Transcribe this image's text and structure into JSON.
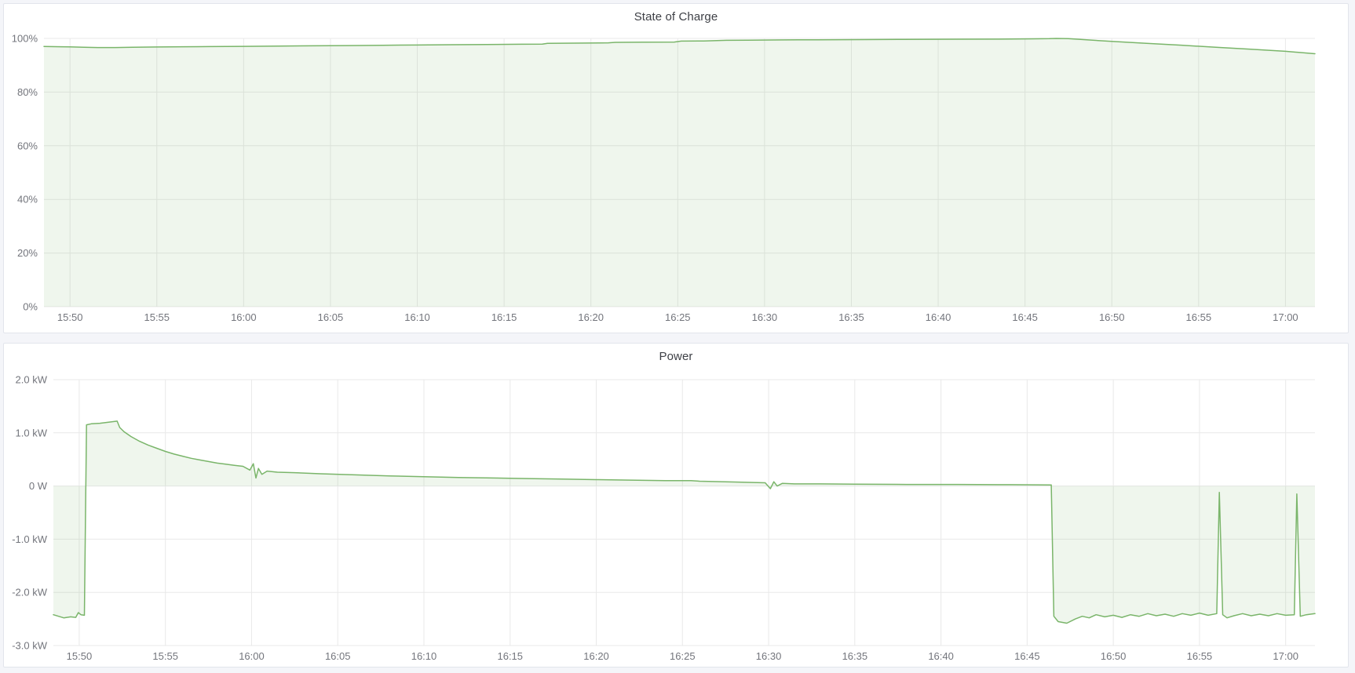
{
  "panels": [
    {
      "title": "State of Charge"
    },
    {
      "title": "Power"
    }
  ],
  "colors": {
    "series_green": "#7ab56a",
    "series_green_fill": "rgba(122,181,106,0.12)",
    "grid": "#e9e9e9",
    "tick_text": "#73757c",
    "title_text": "#3e4046",
    "panel_bg": "#ffffff",
    "page_bg": "#f4f5f9",
    "panel_border": "#e2e5ec"
  },
  "chart_data": [
    {
      "type": "area",
      "title": "State of Charge",
      "xlabel": "",
      "ylabel": "",
      "x_unit": "minutes after 15:00",
      "xlim": [
        48.5,
        121.7
      ],
      "ylim": [
        0,
        100
      ],
      "grid": true,
      "legend": "none",
      "fill_to": 0,
      "x_ticks": [
        {
          "t": 50,
          "label": "15:50"
        },
        {
          "t": 55,
          "label": "15:55"
        },
        {
          "t": 60,
          "label": "16:00"
        },
        {
          "t": 65,
          "label": "16:05"
        },
        {
          "t": 70,
          "label": "16:10"
        },
        {
          "t": 75,
          "label": "16:15"
        },
        {
          "t": 80,
          "label": "16:20"
        },
        {
          "t": 85,
          "label": "16:25"
        },
        {
          "t": 90,
          "label": "16:30"
        },
        {
          "t": 95,
          "label": "16:35"
        },
        {
          "t": 100,
          "label": "16:40"
        },
        {
          "t": 105,
          "label": "16:45"
        },
        {
          "t": 110,
          "label": "16:50"
        },
        {
          "t": 115,
          "label": "16:55"
        },
        {
          "t": 120,
          "label": "17:00"
        }
      ],
      "y_ticks": [
        {
          "v": 0,
          "label": "0%"
        },
        {
          "v": 20,
          "label": "20%"
        },
        {
          "v": 40,
          "label": "40%"
        },
        {
          "v": 60,
          "label": "60%"
        },
        {
          "v": 80,
          "label": "80%"
        },
        {
          "v": 100,
          "label": "100%"
        }
      ],
      "series": [
        {
          "name": "State of Charge",
          "points": [
            [
              48.5,
              97.0
            ],
            [
              49.5,
              96.9
            ],
            [
              50.0,
              96.85
            ],
            [
              50.8,
              96.7
            ],
            [
              51.6,
              96.6
            ],
            [
              52.6,
              96.6
            ],
            [
              53.6,
              96.7
            ],
            [
              55.0,
              96.8
            ],
            [
              56.5,
              96.9
            ],
            [
              58.0,
              96.95
            ],
            [
              60.0,
              97.05
            ],
            [
              62.0,
              97.15
            ],
            [
              64.0,
              97.25
            ],
            [
              66.0,
              97.35
            ],
            [
              68.0,
              97.45
            ],
            [
              70.0,
              97.55
            ],
            [
              72.0,
              97.65
            ],
            [
              74.0,
              97.75
            ],
            [
              76.0,
              97.85
            ],
            [
              77.2,
              97.9
            ],
            [
              77.5,
              98.15
            ],
            [
              79.0,
              98.25
            ],
            [
              81.0,
              98.35
            ],
            [
              81.4,
              98.55
            ],
            [
              83.0,
              98.6
            ],
            [
              84.8,
              98.65
            ],
            [
              85.2,
              99.0
            ],
            [
              86.5,
              99.05
            ],
            [
              87.8,
              99.3
            ],
            [
              89.0,
              99.35
            ],
            [
              91.0,
              99.45
            ],
            [
              93.0,
              99.5
            ],
            [
              95.5,
              99.55
            ],
            [
              98.0,
              99.65
            ],
            [
              101.0,
              99.7
            ],
            [
              103.5,
              99.75
            ],
            [
              105.5,
              99.85
            ],
            [
              106.4,
              99.9
            ],
            [
              106.8,
              100.0
            ],
            [
              107.5,
              99.9
            ],
            [
              110.0,
              98.9
            ],
            [
              112.0,
              98.2
            ],
            [
              114.0,
              97.5
            ],
            [
              116.0,
              96.7
            ],
            [
              118.0,
              96.0
            ],
            [
              120.0,
              95.2
            ],
            [
              121.7,
              94.3
            ]
          ]
        }
      ]
    },
    {
      "type": "area",
      "title": "Power",
      "xlabel": "",
      "ylabel": "",
      "x_unit": "minutes after 15:00",
      "xlim": [
        48.5,
        121.7
      ],
      "ylim": [
        -3,
        2
      ],
      "grid": true,
      "legend": "none",
      "fill_to": 0,
      "x_ticks": [
        {
          "t": 50,
          "label": "15:50"
        },
        {
          "t": 55,
          "label": "15:55"
        },
        {
          "t": 60,
          "label": "16:00"
        },
        {
          "t": 65,
          "label": "16:05"
        },
        {
          "t": 70,
          "label": "16:10"
        },
        {
          "t": 75,
          "label": "16:15"
        },
        {
          "t": 80,
          "label": "16:20"
        },
        {
          "t": 85,
          "label": "16:25"
        },
        {
          "t": 90,
          "label": "16:30"
        },
        {
          "t": 95,
          "label": "16:35"
        },
        {
          "t": 100,
          "label": "16:40"
        },
        {
          "t": 105,
          "label": "16:45"
        },
        {
          "t": 110,
          "label": "16:50"
        },
        {
          "t": 115,
          "label": "16:55"
        },
        {
          "t": 120,
          "label": "17:00"
        }
      ],
      "y_ticks": [
        {
          "v": 2,
          "label": "2.0 kW"
        },
        {
          "v": 1,
          "label": "1.0 kW"
        },
        {
          "v": 0,
          "label": "0 W"
        },
        {
          "v": -1,
          "label": "-1.0 kW"
        },
        {
          "v": -2,
          "label": "-2.0 kW"
        },
        {
          "v": -3,
          "label": "-3.0 kW"
        }
      ],
      "series": [
        {
          "name": "Power",
          "points": [
            [
              48.5,
              -2.42
            ],
            [
              49.1,
              -2.48
            ],
            [
              49.5,
              -2.46
            ],
            [
              49.8,
              -2.47
            ],
            [
              49.95,
              -2.38
            ],
            [
              50.1,
              -2.42
            ],
            [
              50.3,
              -2.43
            ],
            [
              50.42,
              1.15
            ],
            [
              50.7,
              1.17
            ],
            [
              51.2,
              1.18
            ],
            [
              51.7,
              1.2
            ],
            [
              52.2,
              1.22
            ],
            [
              52.35,
              1.1
            ],
            [
              52.6,
              1.02
            ],
            [
              53.0,
              0.93
            ],
            [
              53.5,
              0.84
            ],
            [
              54.0,
              0.77
            ],
            [
              54.5,
              0.71
            ],
            [
              55.0,
              0.65
            ],
            [
              55.5,
              0.6
            ],
            [
              56.0,
              0.56
            ],
            [
              56.5,
              0.52
            ],
            [
              57.0,
              0.49
            ],
            [
              57.5,
              0.46
            ],
            [
              58.0,
              0.43
            ],
            [
              58.5,
              0.41
            ],
            [
              59.0,
              0.39
            ],
            [
              59.5,
              0.37
            ],
            [
              59.9,
              0.3
            ],
            [
              60.1,
              0.42
            ],
            [
              60.25,
              0.15
            ],
            [
              60.4,
              0.33
            ],
            [
              60.6,
              0.22
            ],
            [
              60.9,
              0.28
            ],
            [
              61.5,
              0.26
            ],
            [
              62.5,
              0.25
            ],
            [
              64.0,
              0.23
            ],
            [
              66.0,
              0.21
            ],
            [
              68.0,
              0.19
            ],
            [
              70.0,
              0.175
            ],
            [
              72.0,
              0.16
            ],
            [
              74.0,
              0.15
            ],
            [
              76.0,
              0.14
            ],
            [
              78.0,
              0.13
            ],
            [
              80.0,
              0.12
            ],
            [
              82.0,
              0.11
            ],
            [
              84.0,
              0.1
            ],
            [
              85.5,
              0.1
            ],
            [
              86.0,
              0.09
            ],
            [
              88.0,
              0.075
            ],
            [
              89.8,
              0.06
            ],
            [
              90.1,
              -0.05
            ],
            [
              90.3,
              0.08
            ],
            [
              90.5,
              0.0
            ],
            [
              90.8,
              0.05
            ],
            [
              91.5,
              0.04
            ],
            [
              93.0,
              0.04
            ],
            [
              95.0,
              0.035
            ],
            [
              98.0,
              0.03
            ],
            [
              101.0,
              0.03
            ],
            [
              104.0,
              0.025
            ],
            [
              106.4,
              0.02
            ],
            [
              106.55,
              -2.45
            ],
            [
              106.8,
              -2.55
            ],
            [
              107.3,
              -2.58
            ],
            [
              107.8,
              -2.5
            ],
            [
              108.2,
              -2.45
            ],
            [
              108.6,
              -2.48
            ],
            [
              109.0,
              -2.42
            ],
            [
              109.5,
              -2.46
            ],
            [
              110.0,
              -2.43
            ],
            [
              110.5,
              -2.47
            ],
            [
              111.0,
              -2.42
            ],
            [
              111.5,
              -2.45
            ],
            [
              112.0,
              -2.4
            ],
            [
              112.5,
              -2.44
            ],
            [
              113.0,
              -2.41
            ],
            [
              113.5,
              -2.45
            ],
            [
              114.0,
              -2.4
            ],
            [
              114.5,
              -2.43
            ],
            [
              115.0,
              -2.39
            ],
            [
              115.5,
              -2.43
            ],
            [
              116.0,
              -2.4
            ],
            [
              116.15,
              -0.12
            ],
            [
              116.35,
              -2.42
            ],
            [
              116.6,
              -2.48
            ],
            [
              117.0,
              -2.44
            ],
            [
              117.5,
              -2.4
            ],
            [
              118.0,
              -2.44
            ],
            [
              118.5,
              -2.41
            ],
            [
              119.0,
              -2.44
            ],
            [
              119.5,
              -2.4
            ],
            [
              120.0,
              -2.43
            ],
            [
              120.5,
              -2.42
            ],
            [
              120.65,
              -0.15
            ],
            [
              120.85,
              -2.45
            ],
            [
              121.2,
              -2.42
            ],
            [
              121.7,
              -2.4
            ]
          ]
        }
      ]
    }
  ]
}
